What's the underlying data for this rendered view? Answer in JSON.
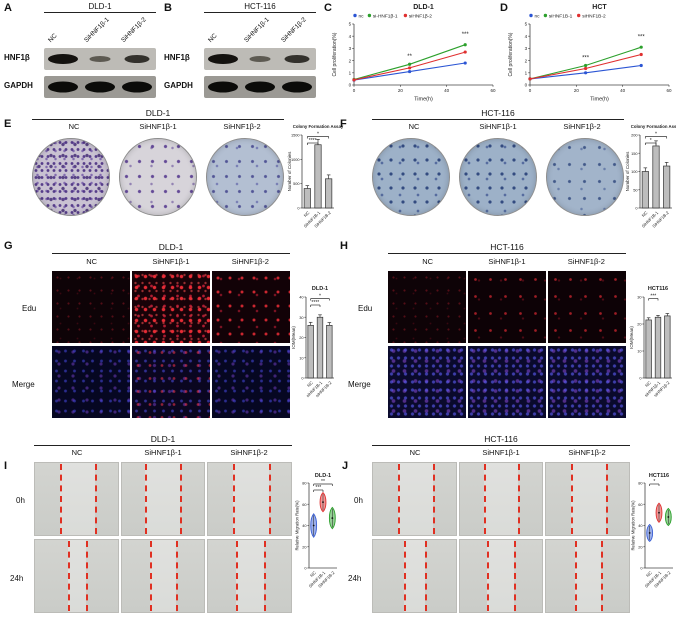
{
  "figure": {
    "panels": {
      "A": {
        "label": "A",
        "cell_line": "DLD-1",
        "lanes": [
          "NC",
          "SiHNF1β-1",
          "SiHNF1β-2"
        ],
        "proteins": [
          "HNF1β",
          "GAPDH"
        ],
        "bands": {
          "hnf1b": [
            "strong",
            "faint",
            "medium"
          ],
          "gapdh": [
            "strong",
            "strong",
            "strong"
          ]
        }
      },
      "B": {
        "label": "B",
        "cell_line": "HCT-116",
        "lanes": [
          "NC",
          "SiHNF1β-1",
          "SiHNF1β-2"
        ],
        "proteins": [
          "HNF1β",
          "GAPDH"
        ],
        "bands": {
          "hnf1b": [
            "strong",
            "faint",
            "medium"
          ],
          "gapdh": [
            "strong",
            "strong",
            "strong"
          ]
        }
      },
      "C": {
        "label": "C"
      },
      "D": {
        "label": "D"
      },
      "E": {
        "label": "E",
        "title": "DLD-1",
        "columns": [
          "NC",
          "SiHNF1β-1",
          "SiHNF1β-2"
        ],
        "wells": [
          "dense-purple",
          "sparse-purple",
          "sparse-blue"
        ]
      },
      "F": {
        "label": "F",
        "title": "HCT-116",
        "columns": [
          "NC",
          "SiHNF1β-1",
          "SiHNF1β-2"
        ],
        "wells": [
          "blue-medium",
          "blue-medium",
          "blue-sparse"
        ]
      },
      "G": {
        "label": "G",
        "title": "DLD-1",
        "columns": [
          "NC",
          "SiHNF1β-1",
          "SiHNF1β-2"
        ],
        "row_labels": [
          "Edu",
          "Merge"
        ],
        "edu": [
          "edu-faint",
          "edu-dense",
          "edu-medium"
        ],
        "merge": [
          "merge-blue",
          "merge-bluered",
          "merge-blue"
        ]
      },
      "H": {
        "label": "H",
        "title": "HCT-116",
        "columns": [
          "NC",
          "SiHNF1β-1",
          "SiHNF1β-2"
        ],
        "row_labels": [
          "Edu",
          "Merge"
        ],
        "edu": [
          "edu-faint",
          "edu-sparse",
          "edu-sparse"
        ],
        "merge": [
          "merge-dense",
          "merge-dense",
          "merge-dense"
        ]
      },
      "I": {
        "label": "I",
        "title": "DLD-1",
        "columns": [
          "NC",
          "SiHNF1β-1",
          "SiHNF1β-2"
        ],
        "row_labels": [
          "0h",
          "24h"
        ],
        "gaps": {
          "r0": [
            [
              30,
              72
            ],
            [
              28,
              71
            ],
            [
              30,
              73
            ]
          ],
          "r1": [
            [
              40,
              62
            ],
            [
              34,
              66
            ],
            [
              34,
              67
            ]
          ]
        }
      },
      "J": {
        "label": "J",
        "title": "HCT-116",
        "columns": [
          "NC",
          "SiHNF1β-1",
          "SiHNF1β-2"
        ],
        "row_labels": [
          "0h",
          "24h"
        ],
        "gaps": {
          "r0": [
            [
              30,
              72
            ],
            [
              29,
              71
            ],
            [
              30,
              72
            ]
          ],
          "r1": [
            [
              38,
              63
            ],
            [
              33,
              66
            ],
            [
              35,
              66
            ]
          ]
        }
      }
    }
  },
  "chart_data": [
    {
      "id": "C",
      "type": "line",
      "title": "DLD-1",
      "xlabel": "Time(h)",
      "ylabel": "Cell proliferation(%)",
      "x": [
        0,
        24,
        48
      ],
      "xlim": [
        0,
        60
      ],
      "ylim": [
        0,
        5
      ],
      "xticks": [
        0,
        20,
        40,
        60
      ],
      "yticks": [
        0,
        1,
        2,
        3,
        4,
        5
      ],
      "legend_position": "top",
      "grid": false,
      "series": [
        {
          "name": "nc",
          "color": "#2b55d4",
          "values": [
            0.4,
            1.1,
            1.8
          ]
        },
        {
          "name": "si-HNF1β-1",
          "color": "#2ca02c",
          "values": [
            0.45,
            1.7,
            3.3
          ]
        },
        {
          "name": "siHNF1β-2",
          "color": "#e03030",
          "values": [
            0.42,
            1.4,
            2.7
          ]
        }
      ],
      "annotations": [
        {
          "x": 24,
          "y": 2.2,
          "text": "**"
        },
        {
          "x": 48,
          "y": 4.0,
          "text": "***"
        }
      ]
    },
    {
      "id": "D",
      "type": "line",
      "title": "HCT",
      "xlabel": "Time(h)",
      "ylabel": "Cell proliferation(%)",
      "x": [
        0,
        24,
        48
      ],
      "xlim": [
        0,
        60
      ],
      "ylim": [
        0,
        5
      ],
      "xticks": [
        0,
        20,
        40,
        60
      ],
      "yticks": [
        0,
        1,
        2,
        3,
        4,
        5
      ],
      "legend_position": "top",
      "grid": false,
      "series": [
        {
          "name": "nc",
          "color": "#2b55d4",
          "values": [
            0.5,
            1.0,
            1.6
          ]
        },
        {
          "name": "siHNF1B-1",
          "color": "#2ca02c",
          "values": [
            0.5,
            1.6,
            3.1
          ]
        },
        {
          "name": "siHNF1B-2",
          "color": "#e03030",
          "values": [
            0.5,
            1.35,
            2.5
          ]
        }
      ],
      "annotations": [
        {
          "x": 24,
          "y": 2.1,
          "text": "***"
        },
        {
          "x": 48,
          "y": 3.8,
          "text": "***"
        }
      ]
    },
    {
      "id": "E",
      "type": "bar",
      "title": "Colony Formation Assay",
      "ylabel": "Number of Colonies",
      "categories": [
        "NC",
        "SiHNF1B-1",
        "SiHNF1B-2"
      ],
      "values": [
        400,
        1300,
        600
      ],
      "errors": [
        60,
        110,
        80
      ],
      "ylim": [
        0,
        1500
      ],
      "yticks": [
        0,
        500,
        1000,
        1500
      ],
      "bar_color": "#bdbdbd",
      "significance": [
        {
          "from": 0,
          "to": 2,
          "text": "*"
        },
        {
          "from": 0,
          "to": 1,
          "text": "****"
        }
      ]
    },
    {
      "id": "F",
      "type": "bar",
      "title": "Colony Formation Assay",
      "ylabel": "Number of Colonies",
      "categories": [
        "NC",
        "SiHNF1B-1",
        "SiHNF1B-2"
      ],
      "values": [
        100,
        170,
        115
      ],
      "errors": [
        10,
        14,
        10
      ],
      "ylim": [
        0,
        200
      ],
      "yticks": [
        0,
        50,
        100,
        150,
        200
      ],
      "bar_color": "#bdbdbd",
      "significance": [
        {
          "from": 0,
          "to": 2,
          "text": "*"
        },
        {
          "from": 0,
          "to": 1,
          "text": "*"
        }
      ]
    },
    {
      "id": "G",
      "type": "bar",
      "title": "DLD-1",
      "ylabel": "IOM(Mean)",
      "categories": [
        "NC",
        "siHNF1B-1",
        "siHNF1B-2"
      ],
      "values": [
        26,
        30,
        26
      ],
      "errors": [
        1.5,
        1.2,
        1.4
      ],
      "ylim": [
        0,
        40
      ],
      "yticks": [
        0,
        10,
        20,
        30,
        40
      ],
      "bar_color": "#bdbdbd",
      "significance": [
        {
          "from": 0,
          "to": 2,
          "text": "*"
        },
        {
          "from": 0,
          "to": 1,
          "text": "****"
        }
      ]
    },
    {
      "id": "H",
      "type": "bar",
      "title": "HCT116",
      "ylabel": "IOM(Mean)",
      "categories": [
        "NC",
        "siHNF1β-1",
        "siHNF1β-2"
      ],
      "values": [
        21.5,
        22.5,
        23
      ],
      "errors": [
        0.8,
        0.7,
        0.9
      ],
      "ylim": [
        0,
        30
      ],
      "yticks": [
        0,
        10,
        20,
        30
      ],
      "bar_color": "#bdbdbd",
      "significance": [
        {
          "from": 0,
          "to": 1,
          "text": "***"
        }
      ]
    },
    {
      "id": "I",
      "type": "violin",
      "title": "DLD-1",
      "ylabel": "Relative Migration Rate(%)",
      "categories": [
        "NC",
        "SiHNF1B-1",
        "SiHNF1B-2"
      ],
      "colors": [
        "#3a5fd4",
        "#e03030",
        "#2ca02c"
      ],
      "medians": [
        40,
        62,
        47
      ],
      "spreads": [
        11,
        9,
        10
      ],
      "ylim": [
        0,
        80
      ],
      "yticks": [
        0,
        20,
        40,
        60,
        80
      ],
      "significance": [
        {
          "from": 0,
          "to": 2,
          "text": "**"
        },
        {
          "from": 0,
          "to": 1,
          "text": "***"
        }
      ]
    },
    {
      "id": "J",
      "type": "violin",
      "title": "HCT116",
      "ylabel": "Relative Migration Rate(%)",
      "categories": [
        "NC",
        "SiHNF1B-1",
        "SiHNF1B-2"
      ],
      "colors": [
        "#3a5fd4",
        "#e03030",
        "#2ca02c"
      ],
      "medians": [
        33,
        52,
        48
      ],
      "spreads": [
        8,
        9,
        8
      ],
      "ylim": [
        0,
        80
      ],
      "yticks": [
        0,
        20,
        40,
        60,
        80
      ],
      "significance": [
        {
          "from": 0,
          "to": 1,
          "text": "*"
        }
      ]
    }
  ]
}
